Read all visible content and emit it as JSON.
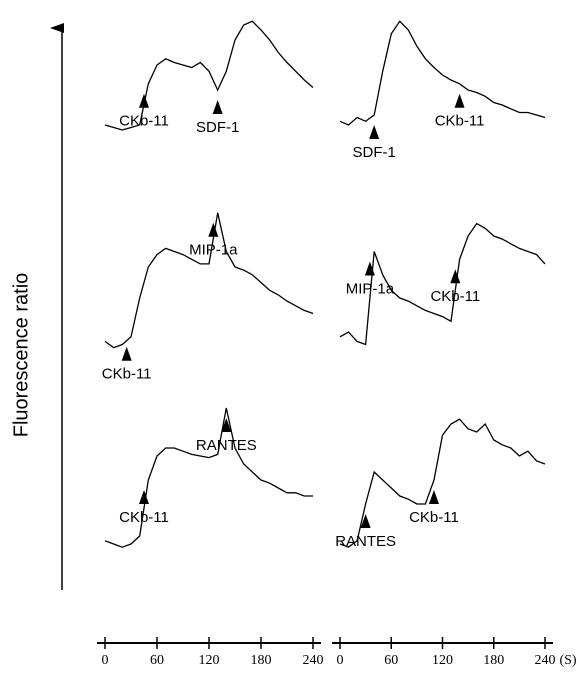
{
  "chart_data": {
    "type": "line",
    "y_label": "Fluorescence ratio",
    "x_unit": "(S)",
    "x": [
      0,
      10,
      20,
      30,
      40,
      50,
      60,
      70,
      80,
      90,
      100,
      110,
      120,
      130,
      140,
      150,
      160,
      170,
      180,
      190,
      200,
      210,
      220,
      230,
      240
    ],
    "xlim": [
      0,
      240
    ],
    "xticks": [
      0,
      60,
      120,
      180,
      240
    ],
    "color": "#000000",
    "panels": [
      {
        "values": [
          12,
          10,
          8,
          10,
          12,
          45,
          60,
          65,
          62,
          60,
          58,
          62,
          55,
          40,
          55,
          80,
          92,
          95,
          88,
          80,
          70,
          62,
          55,
          48,
          42
        ],
        "annotations": [
          {
            "label": "CKb-11",
            "x": 45
          },
          {
            "label": "SDF-1",
            "x": 130
          }
        ]
      },
      {
        "values": [
          15,
          12,
          18,
          15,
          20,
          55,
          85,
          95,
          88,
          75,
          65,
          58,
          52,
          48,
          45,
          40,
          38,
          35,
          30,
          28,
          25,
          22,
          22,
          20,
          18
        ],
        "annotations": [
          {
            "label": "SDF-1",
            "x": 40
          },
          {
            "label": "CKb-11",
            "x": 140
          }
        ]
      },
      {
        "values": [
          12,
          8,
          10,
          15,
          40,
          60,
          68,
          72,
          70,
          68,
          65,
          62,
          62,
          95,
          70,
          60,
          58,
          55,
          50,
          45,
          42,
          38,
          35,
          32,
          30
        ],
        "annotations": [
          {
            "label": "CKb-11",
            "x": 25
          },
          {
            "label": "MIP-1a",
            "x": 125
          }
        ]
      },
      {
        "values": [
          15,
          18,
          12,
          10,
          70,
          55,
          45,
          40,
          38,
          35,
          32,
          30,
          28,
          25,
          65,
          80,
          88,
          85,
          80,
          78,
          75,
          72,
          70,
          68,
          62
        ],
        "annotations": [
          {
            "label": "MIP-1a",
            "x": 35
          },
          {
            "label": "CKb-11",
            "x": 135
          }
        ]
      },
      {
        "values": [
          12,
          10,
          8,
          10,
          15,
          50,
          65,
          70,
          70,
          68,
          66,
          65,
          64,
          66,
          95,
          70,
          60,
          55,
          50,
          48,
          45,
          42,
          42,
          40,
          40
        ],
        "annotations": [
          {
            "label": "CKb-11",
            "x": 45
          },
          {
            "label": "RANTES",
            "x": 140
          }
        ]
      },
      {
        "values": [
          10,
          8,
          12,
          35,
          55,
          50,
          45,
          40,
          38,
          35,
          35,
          50,
          78,
          85,
          88,
          82,
          80,
          85,
          75,
          72,
          70,
          65,
          68,
          62,
          60
        ],
        "annotations": [
          {
            "label": "RANTES",
            "x": 30
          },
          {
            "label": "CKb-11",
            "x": 110
          }
        ]
      }
    ]
  }
}
